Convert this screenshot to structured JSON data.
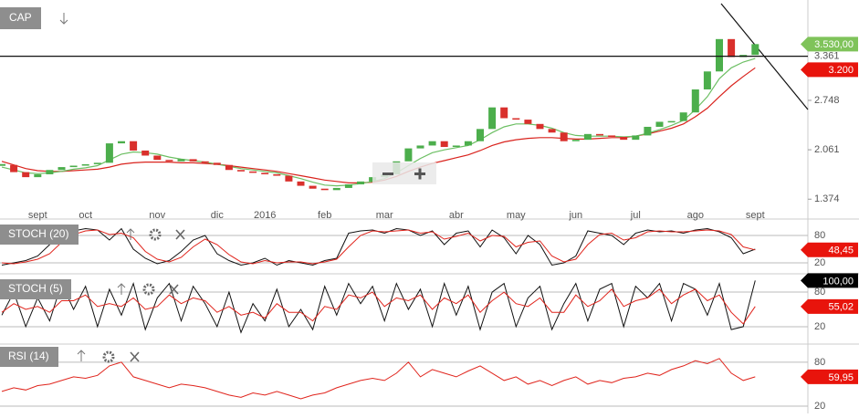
{
  "chart_data": [
    {
      "type": "candlestick",
      "title": "CAP",
      "categories": [
        null,
        null,
        null,
        "sept",
        null,
        null,
        null,
        "oct",
        null,
        null,
        null,
        null,
        null,
        "nov",
        null,
        null,
        null,
        null,
        "dic",
        null,
        null,
        null,
        "2016",
        null,
        null,
        null,
        null,
        "feb",
        null,
        null,
        null,
        null,
        "mar",
        null,
        null,
        null,
        null,
        null,
        "abr",
        null,
        null,
        null,
        null,
        "may",
        null,
        null,
        null,
        null,
        "jun",
        null,
        null,
        null,
        null,
        "jul",
        null,
        null,
        null,
        null,
        "ago",
        null,
        null,
        null,
        null,
        "sept"
      ],
      "values": [
        1850,
        1750,
        1680,
        1720,
        1780,
        1820,
        1840,
        1860,
        1880,
        2150,
        2180,
        2050,
        1980,
        1920,
        1900,
        1930,
        1900,
        1880,
        1850,
        1780,
        1760,
        1740,
        1720,
        1700,
        1620,
        1560,
        1520,
        1500,
        1530,
        1580,
        1620,
        1680,
        1720,
        1900,
        2080,
        2120,
        2180,
        2100,
        2120,
        2180,
        2350,
        2650,
        2500,
        2480,
        2420,
        2350,
        2300,
        2180,
        2200,
        2280,
        2260,
        2240,
        2200,
        2260,
        2380,
        2450,
        2460,
        2580,
        2900,
        3150,
        3600,
        3350,
        3380,
        3530
      ],
      "last_label": "3.530,00",
      "up_color": "#4cae4c",
      "down_color": "#d9302c",
      "moving_averages": [
        {
          "color": "#d9231d",
          "values": [
            1900,
            1850,
            1800,
            1770,
            1760,
            1760,
            1770,
            1780,
            1790,
            1820,
            1860,
            1880,
            1890,
            1890,
            1890,
            1880,
            1880,
            1870,
            1860,
            1840,
            1820,
            1800,
            1780,
            1760,
            1730,
            1700,
            1670,
            1640,
            1620,
            1600,
            1600,
            1610,
            1640,
            1690,
            1760,
            1820,
            1870,
            1910,
            1950,
            1990,
            2050,
            2120,
            2170,
            2200,
            2220,
            2230,
            2230,
            2220,
            2210,
            2210,
            2220,
            2230,
            2230,
            2250,
            2280,
            2320,
            2360,
            2420,
            2520,
            2640,
            2800,
            2950,
            3080,
            3200
          ],
          "last_label": "3.200"
        },
        {
          "color": "#6cbf63",
          "values": [
            1820,
            1780,
            1740,
            1730,
            1740,
            1760,
            1790,
            1810,
            1840,
            1920,
            2000,
            2030,
            2020,
            2000,
            1960,
            1930,
            1910,
            1890,
            1860,
            1830,
            1800,
            1780,
            1760,
            1740,
            1700,
            1660,
            1610,
            1570,
            1560,
            1570,
            1590,
            1620,
            1660,
            1740,
            1840,
            1940,
            2020,
            2060,
            2090,
            2120,
            2200,
            2300,
            2380,
            2420,
            2420,
            2400,
            2360,
            2300,
            2260,
            2250,
            2250,
            2250,
            2240,
            2250,
            2290,
            2340,
            2400,
            2470,
            2620,
            2800,
            3050,
            3200,
            3280,
            3330
          ]
        }
      ],
      "hline": {
        "value": 3361,
        "label": "3.361"
      },
      "ylim": [
        1250,
        4080
      ],
      "yticks": [
        {
          "value": 1374,
          "label": "1.374"
        },
        {
          "value": 2061,
          "label": "2.061"
        },
        {
          "value": 2748,
          "label": "2.748"
        }
      ],
      "grid": false
    },
    {
      "type": "line",
      "title": "STOCH (20)",
      "ylim": [
        0,
        110
      ],
      "yticks": [
        20,
        80
      ],
      "grid": true,
      "series": [
        {
          "color": "#111111",
          "values": [
            15,
            20,
            25,
            35,
            60,
            85,
            90,
            95,
            92,
            70,
            95,
            50,
            30,
            18,
            25,
            45,
            70,
            80,
            40,
            25,
            15,
            20,
            30,
            15,
            25,
            20,
            15,
            25,
            30,
            85,
            90,
            92,
            85,
            95,
            92,
            80,
            90,
            60,
            85,
            90,
            55,
            92,
            75,
            40,
            80,
            60,
            15,
            20,
            35,
            90,
            85,
            80,
            60,
            85,
            92,
            88,
            90,
            85,
            92,
            95,
            88,
            75,
            40,
            50
          ]
        },
        {
          "color": "#e0241c",
          "values": [
            20,
            18,
            22,
            28,
            40,
            65,
            82,
            90,
            92,
            82,
            85,
            75,
            45,
            28,
            22,
            32,
            55,
            72,
            60,
            38,
            22,
            18,
            25,
            20,
            22,
            22,
            18,
            22,
            28,
            55,
            80,
            90,
            88,
            90,
            92,
            85,
            88,
            72,
            78,
            85,
            68,
            80,
            78,
            55,
            65,
            68,
            35,
            22,
            28,
            60,
            82,
            85,
            70,
            75,
            88,
            90,
            88,
            88,
            90,
            92,
            90,
            82,
            55,
            48.45
          ],
          "last_label": "48,45"
        }
      ]
    },
    {
      "type": "line",
      "title": "STOCH (5)",
      "ylim": [
        -7,
        107
      ],
      "yticks": [
        20,
        80
      ],
      "grid": true,
      "series": [
        {
          "color": "#111111",
          "values": [
            40,
            80,
            20,
            70,
            30,
            95,
            50,
            90,
            20,
            85,
            40,
            95,
            15,
            70,
            95,
            30,
            90,
            60,
            20,
            80,
            10,
            60,
            30,
            85,
            20,
            50,
            15,
            90,
            40,
            95,
            60,
            90,
            30,
            95,
            50,
            85,
            20,
            95,
            40,
            90,
            15,
            80,
            95,
            20,
            70,
            90,
            15,
            60,
            95,
            30,
            85,
            95,
            20,
            90,
            70,
            95,
            30,
            95,
            85,
            40,
            95,
            15,
            20,
            100
          ],
          "last_label": "100,00"
        },
        {
          "color": "#e0241c",
          "values": [
            45,
            60,
            50,
            55,
            45,
            65,
            65,
            75,
            55,
            60,
            55,
            70,
            50,
            55,
            75,
            60,
            70,
            65,
            45,
            55,
            40,
            45,
            35,
            60,
            45,
            45,
            30,
            55,
            50,
            75,
            70,
            80,
            55,
            70,
            65,
            75,
            50,
            70,
            60,
            75,
            45,
            65,
            80,
            60,
            55,
            70,
            45,
            45,
            75,
            55,
            65,
            85,
            55,
            65,
            70,
            85,
            60,
            75,
            85,
            65,
            75,
            45,
            25,
            55.02
          ],
          "last_label": "55,02"
        }
      ]
    },
    {
      "type": "line",
      "title": "RSI (14)",
      "ylim": [
        10,
        101
      ],
      "yticks": [
        20,
        80
      ],
      "grid": true,
      "series": [
        {
          "color": "#e0241c",
          "values": [
            40,
            45,
            42,
            48,
            50,
            55,
            60,
            58,
            62,
            75,
            80,
            60,
            55,
            50,
            45,
            50,
            48,
            45,
            40,
            35,
            32,
            38,
            35,
            40,
            35,
            30,
            35,
            38,
            45,
            50,
            55,
            58,
            55,
            65,
            80,
            60,
            70,
            65,
            60,
            68,
            75,
            65,
            55,
            60,
            50,
            55,
            48,
            55,
            60,
            50,
            55,
            52,
            58,
            60,
            65,
            62,
            70,
            75,
            82,
            78,
            85,
            65,
            55,
            59.95
          ],
          "last_label": "59,95"
        }
      ]
    }
  ]
}
